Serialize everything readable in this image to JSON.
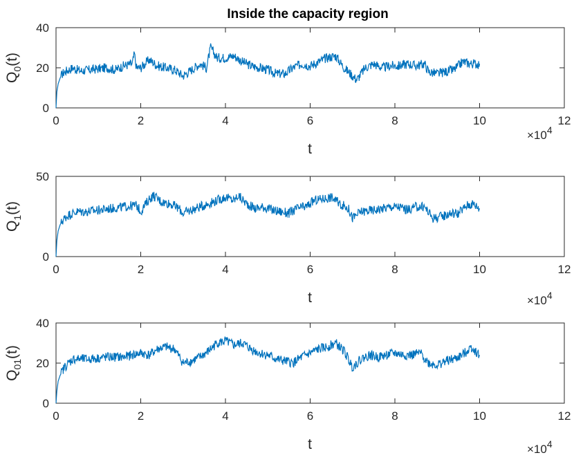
{
  "chart_data": [
    {
      "type": "line",
      "title": "Inside the capacity region",
      "xlabel": "t",
      "ylabel": {
        "base": "Q",
        "sub": "0",
        "tail": "(t)"
      },
      "x_exponent_label": {
        "prefix": "×10",
        "exp": "4"
      },
      "xlim": [
        0,
        12
      ],
      "ylim": [
        0,
        40
      ],
      "xticks": [
        "0",
        "2",
        "4",
        "6",
        "8",
        "10",
        "12"
      ],
      "yticks": [
        "0",
        "20",
        "40"
      ],
      "grid": false,
      "line_color": "#0072BD",
      "series": [
        {
          "x": [
            0,
            0.02,
            0.05,
            0.1,
            0.15,
            0.2,
            0.3,
            0.4,
            0.5,
            0.6,
            0.8,
            1.0,
            1.2,
            1.4,
            1.6,
            1.8,
            1.85,
            1.9,
            2.0,
            2.2,
            2.4,
            2.6,
            2.8,
            3.0,
            3.2,
            3.4,
            3.55,
            3.65,
            3.8,
            4.0,
            4.2,
            4.4,
            4.6,
            4.8,
            5.0,
            5.2,
            5.4,
            5.6,
            5.8,
            6.0,
            6.2,
            6.4,
            6.6,
            6.8,
            7.0,
            7.1,
            7.3,
            7.5,
            7.7,
            7.9,
            8.1,
            8.3,
            8.5,
            8.7,
            8.8,
            9.0,
            9.2,
            9.4,
            9.6,
            9.8,
            10.0
          ],
          "y": [
            0,
            8,
            12,
            15,
            17,
            18,
            19,
            20,
            19,
            18.5,
            19,
            19.5,
            20,
            19,
            21,
            22,
            27,
            20,
            20,
            24,
            21,
            20,
            19,
            16,
            19,
            22,
            20,
            30,
            25,
            25,
            26,
            23,
            21,
            20,
            19,
            17,
            17,
            20,
            22,
            21,
            23,
            25,
            26,
            20,
            16,
            14,
            20,
            22,
            20,
            21,
            21,
            22,
            21,
            22,
            18,
            17,
            18,
            19,
            23,
            22,
            22
          ]
        }
      ]
    },
    {
      "type": "line",
      "title": "",
      "xlabel": "t",
      "ylabel": {
        "base": "Q",
        "sub": "1",
        "tail": "(t)"
      },
      "x_exponent_label": {
        "prefix": "×10",
        "exp": "4"
      },
      "xlim": [
        0,
        12
      ],
      "ylim": [
        0,
        50
      ],
      "xticks": [
        "0",
        "2",
        "4",
        "6",
        "8",
        "10",
        "12"
      ],
      "yticks": [
        "0",
        "50"
      ],
      "grid": false,
      "line_color": "#0072BD",
      "series": [
        {
          "x": [
            0,
            0.02,
            0.05,
            0.1,
            0.15,
            0.2,
            0.3,
            0.4,
            0.5,
            0.7,
            1.0,
            1.3,
            1.6,
            1.9,
            2.0,
            2.2,
            2.3,
            2.5,
            2.7,
            2.9,
            3.0,
            3.2,
            3.4,
            3.6,
            3.8,
            4.0,
            4.2,
            4.3,
            4.5,
            4.7,
            4.9,
            5.1,
            5.3,
            5.5,
            5.7,
            5.9,
            6.1,
            6.3,
            6.5,
            6.7,
            6.9,
            7.0,
            7.2,
            7.5,
            7.7,
            7.9,
            8.1,
            8.3,
            8.5,
            8.7,
            8.9,
            9.1,
            9.3,
            9.5,
            9.7,
            9.85,
            10.0
          ],
          "y": [
            0,
            10,
            16,
            20,
            22,
            24,
            26,
            27,
            28,
            28,
            29,
            30,
            31,
            32,
            28,
            36,
            38,
            34,
            33,
            30,
            27,
            29,
            31,
            33,
            35,
            37,
            35,
            38,
            33,
            30,
            31,
            29,
            28,
            27,
            30,
            31,
            35,
            36,
            37,
            33,
            30,
            24,
            28,
            29,
            30,
            31,
            31,
            29,
            31,
            31,
            24,
            25,
            27,
            27,
            32,
            33,
            30
          ]
        }
      ]
    },
    {
      "type": "line",
      "title": "",
      "xlabel": "t",
      "ylabel": {
        "base": "Q",
        "sub": "01",
        "tail": "(t)"
      },
      "x_exponent_label": {
        "prefix": "×10",
        "exp": "4"
      },
      "xlim": [
        0,
        12
      ],
      "ylim": [
        0,
        40
      ],
      "xticks": [
        "0",
        "2",
        "4",
        "6",
        "8",
        "10",
        "12"
      ],
      "yticks": [
        "0",
        "20",
        "40"
      ],
      "grid": false,
      "line_color": "#0072BD",
      "series": [
        {
          "x": [
            0,
            0.02,
            0.05,
            0.1,
            0.15,
            0.2,
            0.3,
            0.4,
            0.6,
            0.8,
            1.0,
            1.2,
            1.4,
            1.6,
            1.8,
            2.0,
            2.2,
            2.4,
            2.6,
            2.8,
            3.0,
            3.2,
            3.4,
            3.6,
            3.8,
            4.0,
            4.2,
            4.4,
            4.6,
            4.8,
            5.0,
            5.2,
            5.4,
            5.6,
            5.8,
            6.0,
            6.2,
            6.4,
            6.6,
            6.8,
            7.0,
            7.2,
            7.4,
            7.6,
            7.8,
            8.0,
            8.2,
            8.4,
            8.6,
            8.8,
            9.0,
            9.2,
            9.4,
            9.6,
            9.8,
            10.0
          ],
          "y": [
            0,
            6,
            11,
            14,
            16,
            18,
            20,
            22,
            22,
            22,
            22.5,
            23,
            23,
            23,
            24,
            25,
            24,
            27,
            28,
            27,
            20,
            21,
            23,
            26,
            30,
            31,
            29,
            30,
            27,
            25,
            24,
            22,
            21,
            20,
            23,
            25,
            27,
            28,
            30,
            26,
            18,
            22,
            24,
            23,
            24,
            25,
            24,
            24,
            25,
            20,
            19,
            21,
            22,
            24,
            28,
            24
          ]
        }
      ]
    }
  ]
}
